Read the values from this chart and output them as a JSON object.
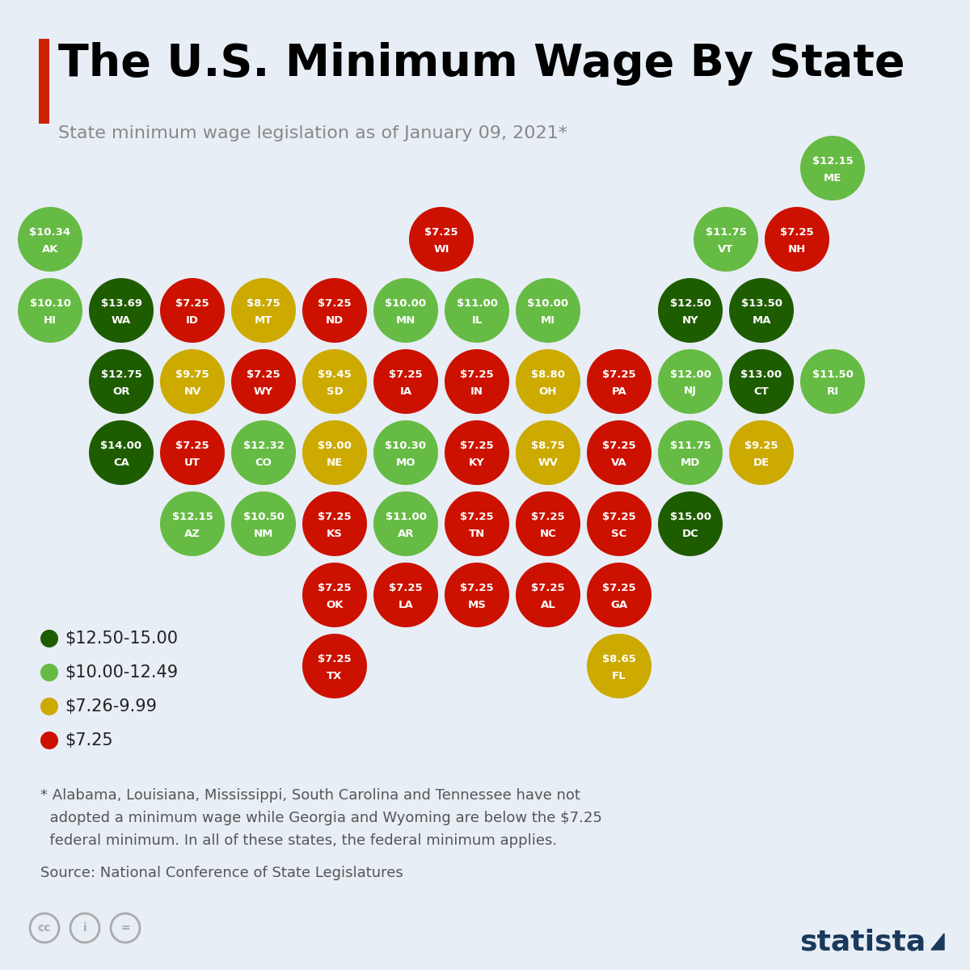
{
  "title": "The U.S. Minimum Wage By State",
  "subtitle": "State minimum wage legislation as of January 09, 2021*",
  "bg_color": "#e8eef5",
  "title_color": "#000000",
  "subtitle_color": "#888888",
  "red_bar_color": "#cc2200",
  "legend": [
    {
      "label": "$12.50-15.00",
      "color": "#1e5c00"
    },
    {
      "label": "$10.00-12.49",
      "color": "#66bb44"
    },
    {
      "label": "$7.26-9.99",
      "color": "#ccaa00"
    },
    {
      "label": "$7.25",
      "color": "#cc1100"
    }
  ],
  "footnote_line1": "* Alabama, Louisiana, Mississippi, South Carolina and Tennessee have not",
  "footnote_line2": "  adopted a minimum wage while Georgia and Wyoming are below the $7.25",
  "footnote_line3": "  federal minimum. In all of these states, the federal minimum applies.",
  "source": "Source: National Conference of State Legislatures",
  "states": [
    {
      "abbr": "AK",
      "wage": "$10.34",
      "col": 0,
      "row": 1,
      "color": "#66bb44"
    },
    {
      "abbr": "HI",
      "wage": "$10.10",
      "col": 0,
      "row": 2,
      "color": "#66bb44"
    },
    {
      "abbr": "ME",
      "wage": "$12.15",
      "col": 11,
      "row": 0,
      "color": "#66bb44"
    },
    {
      "abbr": "WI",
      "wage": "$7.25",
      "col": 5.5,
      "row": 1,
      "color": "#cc1100"
    },
    {
      "abbr": "VT",
      "wage": "$11.75",
      "col": 9.5,
      "row": 1,
      "color": "#66bb44"
    },
    {
      "abbr": "NH",
      "wage": "$7.25",
      "col": 10.5,
      "row": 1,
      "color": "#cc1100"
    },
    {
      "abbr": "WA",
      "wage": "$13.69",
      "col": 1,
      "row": 2,
      "color": "#1e5c00"
    },
    {
      "abbr": "ID",
      "wage": "$7.25",
      "col": 2,
      "row": 2,
      "color": "#cc1100"
    },
    {
      "abbr": "MT",
      "wage": "$8.75",
      "col": 3,
      "row": 2,
      "color": "#ccaa00"
    },
    {
      "abbr": "ND",
      "wage": "$7.25",
      "col": 4,
      "row": 2,
      "color": "#cc1100"
    },
    {
      "abbr": "MN",
      "wage": "$10.00",
      "col": 5,
      "row": 2,
      "color": "#66bb44"
    },
    {
      "abbr": "IL",
      "wage": "$11.00",
      "col": 6,
      "row": 2,
      "color": "#66bb44"
    },
    {
      "abbr": "MI",
      "wage": "$10.00",
      "col": 7,
      "row": 2,
      "color": "#66bb44"
    },
    {
      "abbr": "NY",
      "wage": "$12.50",
      "col": 9,
      "row": 2,
      "color": "#1e5c00"
    },
    {
      "abbr": "MA",
      "wage": "$13.50",
      "col": 10,
      "row": 2,
      "color": "#1e5c00"
    },
    {
      "abbr": "OR",
      "wage": "$12.75",
      "col": 1,
      "row": 3,
      "color": "#1e5c00"
    },
    {
      "abbr": "NV",
      "wage": "$9.75",
      "col": 2,
      "row": 3,
      "color": "#ccaa00"
    },
    {
      "abbr": "WY",
      "wage": "$7.25",
      "col": 3,
      "row": 3,
      "color": "#cc1100"
    },
    {
      "abbr": "SD",
      "wage": "$9.45",
      "col": 4,
      "row": 3,
      "color": "#ccaa00"
    },
    {
      "abbr": "IA",
      "wage": "$7.25",
      "col": 5,
      "row": 3,
      "color": "#cc1100"
    },
    {
      "abbr": "IN",
      "wage": "$7.25",
      "col": 6,
      "row": 3,
      "color": "#cc1100"
    },
    {
      "abbr": "OH",
      "wage": "$8.80",
      "col": 7,
      "row": 3,
      "color": "#ccaa00"
    },
    {
      "abbr": "PA",
      "wage": "$7.25",
      "col": 8,
      "row": 3,
      "color": "#cc1100"
    },
    {
      "abbr": "NJ",
      "wage": "$12.00",
      "col": 9,
      "row": 3,
      "color": "#66bb44"
    },
    {
      "abbr": "CT",
      "wage": "$13.00",
      "col": 10,
      "row": 3,
      "color": "#1e5c00"
    },
    {
      "abbr": "RI",
      "wage": "$11.50",
      "col": 11,
      "row": 3,
      "color": "#66bb44"
    },
    {
      "abbr": "CA",
      "wage": "$14.00",
      "col": 1,
      "row": 4,
      "color": "#1e5c00"
    },
    {
      "abbr": "UT",
      "wage": "$7.25",
      "col": 2,
      "row": 4,
      "color": "#cc1100"
    },
    {
      "abbr": "CO",
      "wage": "$12.32",
      "col": 3,
      "row": 4,
      "color": "#66bb44"
    },
    {
      "abbr": "NE",
      "wage": "$9.00",
      "col": 4,
      "row": 4,
      "color": "#ccaa00"
    },
    {
      "abbr": "MO",
      "wage": "$10.30",
      "col": 5,
      "row": 4,
      "color": "#66bb44"
    },
    {
      "abbr": "KY",
      "wage": "$7.25",
      "col": 6,
      "row": 4,
      "color": "#cc1100"
    },
    {
      "abbr": "WV",
      "wage": "$8.75",
      "col": 7,
      "row": 4,
      "color": "#ccaa00"
    },
    {
      "abbr": "VA",
      "wage": "$7.25",
      "col": 8,
      "row": 4,
      "color": "#cc1100"
    },
    {
      "abbr": "MD",
      "wage": "$11.75",
      "col": 9,
      "row": 4,
      "color": "#66bb44"
    },
    {
      "abbr": "DE",
      "wage": "$9.25",
      "col": 10,
      "row": 4,
      "color": "#ccaa00"
    },
    {
      "abbr": "AZ",
      "wage": "$12.15",
      "col": 2,
      "row": 5,
      "color": "#66bb44"
    },
    {
      "abbr": "NM",
      "wage": "$10.50",
      "col": 3,
      "row": 5,
      "color": "#66bb44"
    },
    {
      "abbr": "KS",
      "wage": "$7.25",
      "col": 4,
      "row": 5,
      "color": "#cc1100"
    },
    {
      "abbr": "AR",
      "wage": "$11.00",
      "col": 5,
      "row": 5,
      "color": "#66bb44"
    },
    {
      "abbr": "TN",
      "wage": "$7.25",
      "col": 6,
      "row": 5,
      "color": "#cc1100"
    },
    {
      "abbr": "NC",
      "wage": "$7.25",
      "col": 7,
      "row": 5,
      "color": "#cc1100"
    },
    {
      "abbr": "SC",
      "wage": "$7.25",
      "col": 8,
      "row": 5,
      "color": "#cc1100"
    },
    {
      "abbr": "DC",
      "wage": "$15.00",
      "col": 9,
      "row": 5,
      "color": "#1e5c00"
    },
    {
      "abbr": "OK",
      "wage": "$7.25",
      "col": 4,
      "row": 6,
      "color": "#cc1100"
    },
    {
      "abbr": "LA",
      "wage": "$7.25",
      "col": 5,
      "row": 6,
      "color": "#cc1100"
    },
    {
      "abbr": "MS",
      "wage": "$7.25",
      "col": 6,
      "row": 6,
      "color": "#cc1100"
    },
    {
      "abbr": "AL",
      "wage": "$7.25",
      "col": 7,
      "row": 6,
      "color": "#cc1100"
    },
    {
      "abbr": "GA",
      "wage": "$7.25",
      "col": 8,
      "row": 6,
      "color": "#cc1100"
    },
    {
      "abbr": "TX",
      "wage": "$7.25",
      "col": 4,
      "row": 7,
      "color": "#cc1100"
    },
    {
      "abbr": "FL",
      "wage": "$8.65",
      "col": 8,
      "row": 7,
      "color": "#ccaa00"
    }
  ]
}
